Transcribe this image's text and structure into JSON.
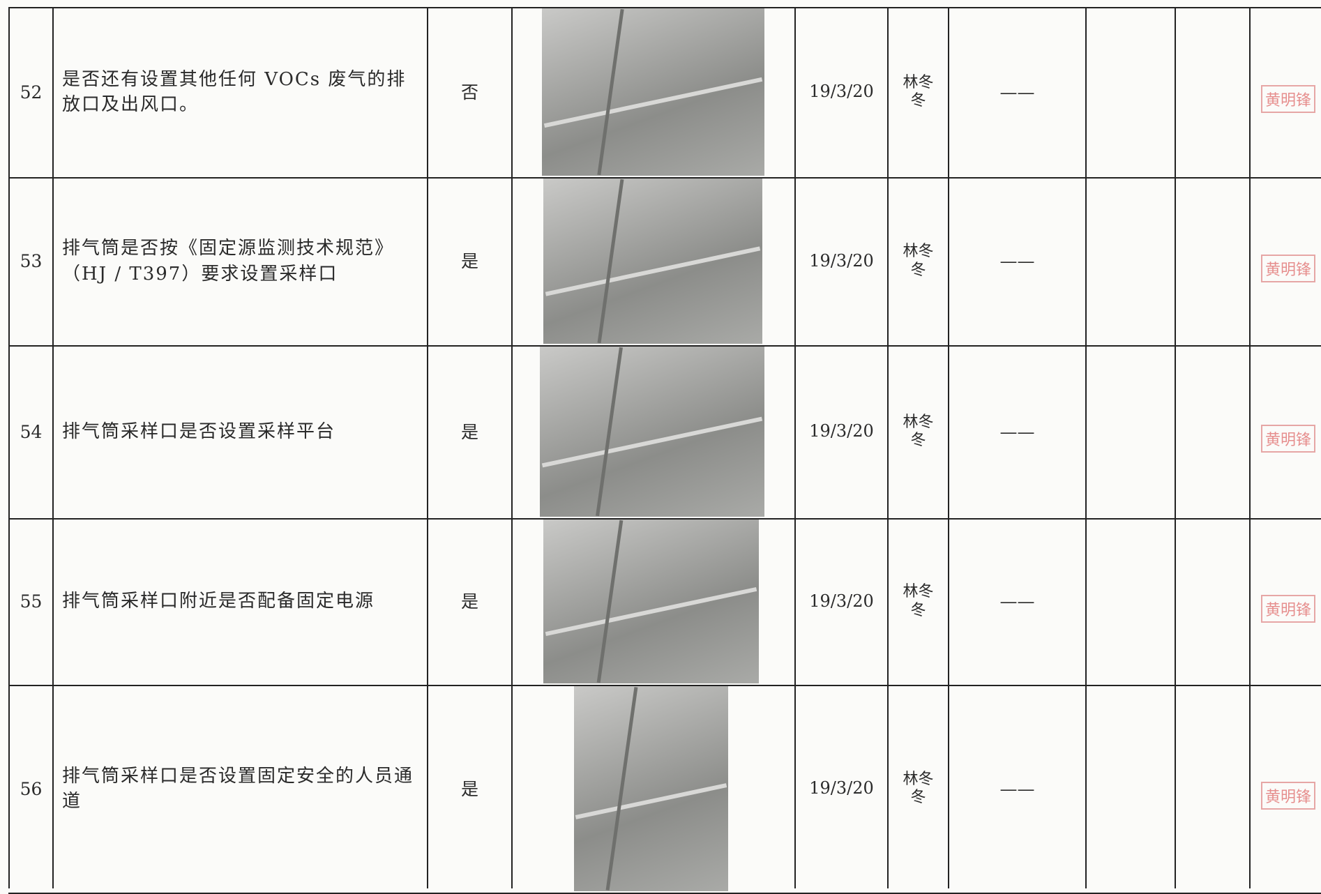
{
  "table": {
    "rows": [
      {
        "no": "52",
        "item": "是否还有设置其他任何 VOCs 废气的排放口及出风口。",
        "result": "否",
        "date": "19/3/20",
        "inspector": "林冬冬",
        "remark": "——",
        "stamp": "黄明锋"
      },
      {
        "no": "53",
        "item": "排气筒是否按《固定源监测技术规范》（HJ / T397）要求设置采样口",
        "result": "是",
        "date": "19/3/20",
        "inspector": "林冬冬",
        "remark": "——",
        "stamp": "黄明锋"
      },
      {
        "no": "54",
        "item": "排气筒采样口是否设置采样平台",
        "result": "是",
        "date": "19/3/20",
        "inspector": "林冬冬",
        "remark": "——",
        "stamp": "黄明锋"
      },
      {
        "no": "55",
        "item": "排气筒采样口附近是否配备固定电源",
        "result": "是",
        "date": "19/3/20",
        "inspector": "林冬冬",
        "remark": "——",
        "stamp": "黄明锋"
      },
      {
        "no": "56",
        "item": "排气筒采样口是否设置固定安全的人员通道",
        "result": "是",
        "date": "19/3/20",
        "inspector": "林冬冬",
        "remark": "——",
        "stamp": "黄明锋"
      }
    ]
  }
}
